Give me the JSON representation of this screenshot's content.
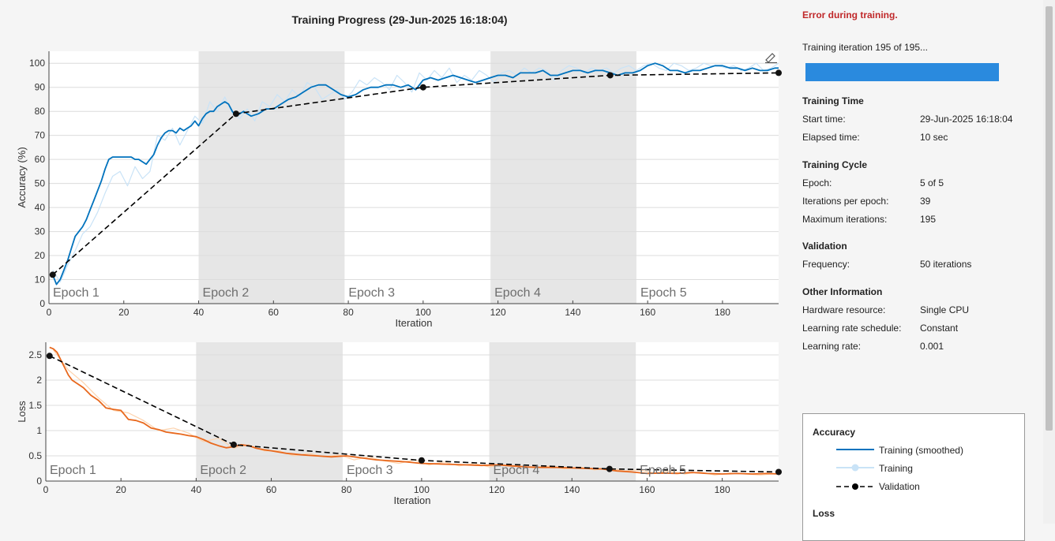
{
  "title": "Training Progress (29-Jun-2025 16:18:04)",
  "status": {
    "error": "Error during training.",
    "iteration": "Training iteration 195 of 195...",
    "progress_fraction": 1.0,
    "bar_color": "#2a8ade"
  },
  "info": {
    "training_time": {
      "heading": "Training Time",
      "rows": [
        {
          "label": "Start time:",
          "value": "29-Jun-2025 16:18:04"
        },
        {
          "label": "Elapsed time:",
          "value": "10 sec"
        }
      ]
    },
    "training_cycle": {
      "heading": "Training Cycle",
      "rows": [
        {
          "label": "Epoch:",
          "value": "5 of 5"
        },
        {
          "label": "Iterations per epoch:",
          "value": "39"
        },
        {
          "label": "Maximum iterations:",
          "value": "195"
        }
      ]
    },
    "validation": {
      "heading": "Validation",
      "rows": [
        {
          "label": "Frequency:",
          "value": "50 iterations"
        }
      ]
    },
    "other": {
      "heading": "Other Information",
      "rows": [
        {
          "label": "Hardware resource:",
          "value": "Single CPU"
        },
        {
          "label": "Learning rate schedule:",
          "value": "Constant"
        },
        {
          "label": "Learning rate:",
          "value": "0.001"
        }
      ]
    }
  },
  "legend": {
    "accuracy_heading": "Accuracy",
    "loss_heading": "Loss",
    "items": [
      {
        "label": "Training (smoothed)",
        "color": "#0072bd",
        "style": "solid"
      },
      {
        "label": "Training",
        "color": "#c9e3f7",
        "style": "solid-marker"
      },
      {
        "label": "Validation",
        "color": "#000000",
        "style": "dashed-marker"
      }
    ]
  },
  "chart_data": [
    {
      "type": "line",
      "name": "accuracy",
      "xlabel": "Iteration",
      "ylabel": "Accuracy (%)",
      "xlim": [
        0,
        195
      ],
      "ylim": [
        0,
        105
      ],
      "xticks": [
        0,
        20,
        40,
        60,
        80,
        100,
        120,
        140,
        160,
        180
      ],
      "yticks": [
        0,
        10,
        20,
        30,
        40,
        50,
        60,
        70,
        80,
        90,
        100
      ],
      "grid": true,
      "epochs": [
        {
          "label": "Epoch 1",
          "start": 0,
          "end": 39,
          "shaded": false
        },
        {
          "label": "Epoch 2",
          "start": 40,
          "end": 79,
          "shaded": true
        },
        {
          "label": "Epoch 3",
          "start": 79,
          "end": 118,
          "shaded": false
        },
        {
          "label": "Epoch 4",
          "start": 118,
          "end": 157,
          "shaded": true
        },
        {
          "label": "Epoch 5",
          "start": 157,
          "end": 195,
          "shaded": false
        }
      ],
      "series": [
        {
          "name": "Training (smoothed)",
          "color": "#0072bd",
          "x": [
            1,
            2,
            3,
            4,
            5,
            6,
            7,
            8,
            9,
            10,
            11,
            12,
            13,
            14,
            15,
            16,
            17,
            18,
            19,
            20,
            21,
            22,
            23,
            24,
            25,
            26,
            27,
            28,
            29,
            30,
            31,
            32,
            33,
            34,
            35,
            36,
            37,
            38,
            39,
            40,
            41,
            42,
            43,
            44,
            45,
            46,
            47,
            48,
            49,
            50,
            52,
            54,
            56,
            58,
            60,
            62,
            64,
            66,
            68,
            70,
            72,
            74,
            76,
            78,
            80,
            82,
            84,
            86,
            88,
            90,
            92,
            94,
            96,
            98,
            100,
            102,
            104,
            106,
            108,
            110,
            112,
            114,
            116,
            118,
            120,
            122,
            124,
            126,
            128,
            130,
            132,
            134,
            136,
            138,
            140,
            142,
            144,
            146,
            148,
            150,
            152,
            154,
            156,
            158,
            160,
            162,
            164,
            166,
            168,
            170,
            172,
            174,
            176,
            178,
            180,
            182,
            184,
            186,
            188,
            190,
            192,
            194,
            195
          ],
          "values": [
            12,
            8,
            10,
            14,
            18,
            23,
            28,
            30,
            32,
            35,
            39,
            43,
            47,
            51,
            56,
            60,
            61,
            61,
            61,
            61,
            61,
            61,
            60,
            60,
            59,
            58,
            60,
            62,
            66,
            69,
            71,
            72,
            72,
            71,
            73,
            72,
            73,
            74,
            76,
            74,
            77,
            79,
            80,
            80,
            82,
            83,
            84,
            83,
            80,
            78,
            80,
            78,
            79,
            81,
            81,
            83,
            85,
            86,
            88,
            90,
            91,
            91,
            89,
            87,
            86,
            87,
            89,
            90,
            90,
            91,
            91,
            90,
            91,
            89,
            93,
            94,
            93,
            94,
            95,
            94,
            93,
            92,
            93,
            94,
            95,
            95,
            94,
            96,
            96,
            96,
            97,
            95,
            95,
            96,
            97,
            97,
            96,
            97,
            97,
            96,
            95,
            96,
            96,
            97,
            99,
            100,
            99,
            97,
            97,
            96,
            97,
            97,
            98,
            99,
            99,
            98,
            98,
            97,
            98,
            97,
            97,
            98,
            98
          ]
        },
        {
          "name": "Training",
          "color": "#c9e3f7",
          "x": [
            1,
            3,
            5,
            7,
            9,
            11,
            13,
            15,
            17,
            19,
            21,
            23,
            25,
            27,
            29,
            31,
            33,
            35,
            37,
            39,
            41,
            43,
            45,
            47,
            49,
            51,
            53,
            55,
            57,
            59,
            61,
            63,
            65,
            67,
            69,
            71,
            73,
            75,
            77,
            79,
            81,
            83,
            85,
            87,
            89,
            91,
            93,
            95,
            97,
            99,
            101,
            103,
            105,
            107,
            109,
            111,
            113,
            115,
            117,
            119,
            121,
            123,
            125,
            127,
            129,
            131,
            133,
            135,
            137,
            139,
            141,
            143,
            145,
            147,
            149,
            151,
            153,
            155,
            157,
            159,
            161,
            163,
            165,
            167,
            169,
            171,
            173,
            175,
            177,
            179,
            181,
            183,
            185,
            187,
            189,
            191,
            193,
            195
          ],
          "values": [
            14,
            9,
            16,
            22,
            29,
            32,
            38,
            46,
            53,
            55,
            49,
            57,
            52,
            55,
            70,
            68,
            73,
            66,
            72,
            78,
            75,
            84,
            80,
            86,
            79,
            77,
            81,
            76,
            84,
            82,
            87,
            84,
            89,
            86,
            92,
            90,
            85,
            87,
            89,
            85,
            88,
            93,
            91,
            94,
            92,
            89,
            95,
            92,
            88,
            96,
            93,
            97,
            94,
            98,
            92,
            95,
            93,
            97,
            95,
            92,
            96,
            97,
            95,
            98,
            96,
            98,
            97,
            93,
            97,
            99,
            98,
            96,
            98,
            97,
            98,
            96,
            98,
            99,
            97,
            99,
            100,
            98,
            97,
            100,
            99,
            97,
            98,
            100,
            99,
            99,
            98,
            99,
            97,
            98,
            100,
            97,
            98,
            100
          ]
        },
        {
          "name": "Validation",
          "color": "#000000",
          "x": [
            1,
            50,
            100,
            150,
            195
          ],
          "values": [
            12,
            79,
            90,
            95,
            96
          ]
        }
      ]
    },
    {
      "type": "line",
      "name": "loss",
      "xlabel": "Iteration",
      "ylabel": "Loss",
      "xlim": [
        0,
        195
      ],
      "ylim": [
        0,
        2.75
      ],
      "xticks": [
        0,
        20,
        40,
        60,
        80,
        100,
        120,
        140,
        160,
        180
      ],
      "yticks": [
        0,
        0.5,
        1,
        1.5,
        2,
        2.5
      ],
      "grid": true,
      "epochs": [
        {
          "label": "Epoch 1",
          "start": 0,
          "end": 39,
          "shaded": false
        },
        {
          "label": "Epoch 2",
          "start": 40,
          "end": 79,
          "shaded": true
        },
        {
          "label": "Epoch 3",
          "start": 79,
          "end": 118,
          "shaded": false
        },
        {
          "label": "Epoch 4",
          "start": 118,
          "end": 157,
          "shaded": true
        },
        {
          "label": "Epoch 5",
          "start": 157,
          "end": 195,
          "shaded": false
        }
      ],
      "series": [
        {
          "name": "Training (smoothed)",
          "color": "#e8681d",
          "x": [
            1,
            2,
            3,
            4,
            5,
            6,
            7,
            8,
            9,
            10,
            12,
            14,
            16,
            18,
            20,
            22,
            24,
            26,
            28,
            30,
            32,
            34,
            36,
            38,
            40,
            42,
            44,
            46,
            48,
            50,
            52,
            54,
            56,
            58,
            60,
            64,
            68,
            72,
            76,
            80,
            84,
            88,
            92,
            96,
            100,
            104,
            108,
            112,
            116,
            120,
            124,
            128,
            132,
            136,
            140,
            144,
            148,
            152,
            156,
            160,
            164,
            168,
            172,
            176,
            180,
            184,
            188,
            192,
            195
          ],
          "values": [
            2.65,
            2.62,
            2.55,
            2.4,
            2.25,
            2.1,
            2.0,
            1.95,
            1.9,
            1.85,
            1.7,
            1.6,
            1.45,
            1.42,
            1.4,
            1.22,
            1.2,
            1.15,
            1.05,
            1.02,
            0.97,
            0.95,
            0.93,
            0.9,
            0.88,
            0.82,
            0.75,
            0.7,
            0.66,
            0.68,
            0.72,
            0.7,
            0.65,
            0.62,
            0.6,
            0.55,
            0.52,
            0.5,
            0.48,
            0.5,
            0.46,
            0.42,
            0.4,
            0.38,
            0.35,
            0.34,
            0.33,
            0.32,
            0.31,
            0.32,
            0.3,
            0.28,
            0.27,
            0.27,
            0.26,
            0.25,
            0.24,
            0.2,
            0.18,
            0.15,
            0.16,
            0.15,
            0.17,
            0.15,
            0.14,
            0.15,
            0.14,
            0.15,
            0.14
          ]
        },
        {
          "name": "Training",
          "color": "#fdd3ad",
          "x": [
            2,
            6,
            10,
            14,
            18,
            22,
            26,
            30,
            34,
            38,
            42,
            46,
            50,
            54,
            58,
            62,
            66,
            70,
            74,
            78,
            82,
            86,
            90,
            94,
            98,
            102,
            106,
            110,
            114,
            118,
            122,
            126,
            130,
            134,
            138,
            142,
            146,
            150,
            154,
            158,
            162,
            166,
            170,
            174,
            178,
            182,
            186,
            190,
            195
          ],
          "values": [
            2.6,
            2.2,
            1.95,
            1.65,
            1.4,
            1.35,
            1.2,
            1.0,
            1.05,
            0.95,
            0.78,
            0.85,
            0.65,
            0.72,
            0.6,
            0.6,
            0.5,
            0.55,
            0.48,
            0.52,
            0.42,
            0.48,
            0.4,
            0.35,
            0.42,
            0.32,
            0.38,
            0.3,
            0.35,
            0.28,
            0.32,
            0.3,
            0.26,
            0.3,
            0.24,
            0.28,
            0.22,
            0.26,
            0.2,
            0.22,
            0.16,
            0.2,
            0.14,
            0.18,
            0.12,
            0.16,
            0.14,
            0.12,
            0.15
          ]
        },
        {
          "name": "Validation",
          "color": "#000000",
          "x": [
            1,
            50,
            100,
            150,
            195
          ],
          "values": [
            2.48,
            0.72,
            0.41,
            0.24,
            0.18
          ]
        }
      ]
    }
  ]
}
